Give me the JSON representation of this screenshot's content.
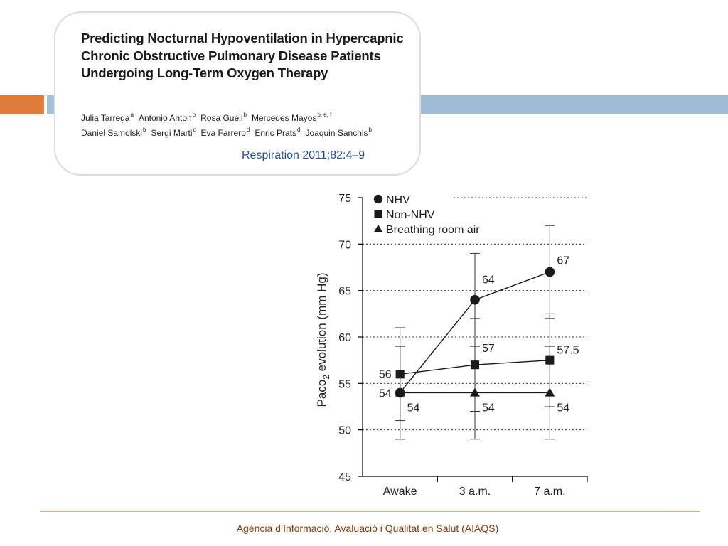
{
  "colors": {
    "accent_orange": "#e07b39",
    "accent_blue": "#9dbbd4",
    "citation_blue": "#1f4eb0",
    "footer_brown": "#8a3a06"
  },
  "paper": {
    "title": "Predicting Nocturnal Hypoventilation in Hypercapnic Chronic Obstructive Pulmonary Disease Patients Undergoing Long-Term Oxygen Therapy",
    "author_lines": [
      [
        {
          "name": "Julia Tarrega",
          "sup": "a"
        },
        {
          "name": "Antonio Anton",
          "sup": "b"
        },
        {
          "name": "Rosa Guell",
          "sup": "b"
        },
        {
          "name": "Mercedes Mayos",
          "sup": "b, e, f"
        }
      ],
      [
        {
          "name": "Daniel Samolski",
          "sup": "b"
        },
        {
          "name": "Sergi Marti",
          "sup": "c"
        },
        {
          "name": "Eva Farrero",
          "sup": "d"
        },
        {
          "name": "Enric Prats",
          "sup": "d"
        },
        {
          "name": "Joaquin Sanchis",
          "sup": "b"
        }
      ]
    ],
    "citation": "Respiration 2011;82:4–9"
  },
  "chart_data": {
    "type": "line",
    "categories": [
      "Awake",
      "3 a.m.",
      "7 a.m."
    ],
    "ylabel_parts": [
      "Paco",
      "2",
      " evolution (mm Hg)"
    ],
    "ylim": [
      45,
      75
    ],
    "yticks": [
      45,
      50,
      55,
      60,
      65,
      70,
      75
    ],
    "grid": true,
    "legend_position": "top-left",
    "series": [
      {
        "name": "NHV",
        "marker": "circle",
        "values": [
          54,
          64,
          67
        ],
        "errors": [
          5,
          5,
          5
        ],
        "labels": [
          "54",
          "64",
          "67"
        ]
      },
      {
        "name": "Non-NHV",
        "marker": "square",
        "values": [
          56,
          57,
          57.5
        ],
        "errors": [
          5,
          5,
          5
        ],
        "labels": [
          "56",
          "57",
          "57.5"
        ]
      },
      {
        "name": "Breathing room air",
        "marker": "triangle",
        "values": [
          54,
          54,
          54
        ],
        "errors": [
          5,
          5,
          5
        ],
        "labels": [
          "54",
          "54",
          "54"
        ]
      }
    ]
  },
  "footer": {
    "text": "Agència d’Informació, Avaluació i Qualitat en Salut (AIAQS)"
  }
}
